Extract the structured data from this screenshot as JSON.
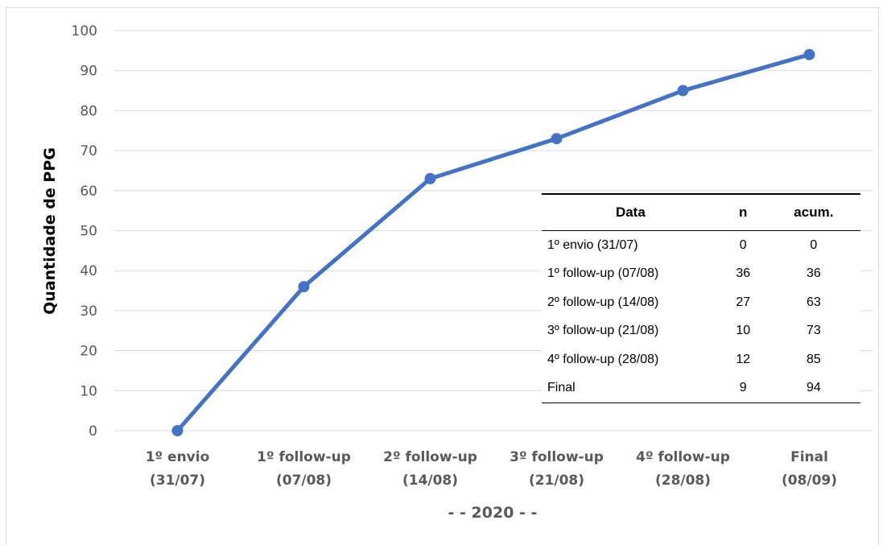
{
  "chart_data": {
    "type": "line",
    "categories": [
      [
        "1º envio",
        "(31/07)"
      ],
      [
        "1º follow-up",
        "(07/08)"
      ],
      [
        "2º follow-up",
        "(14/08)"
      ],
      [
        "3º follow-up",
        "(21/08)"
      ],
      [
        "4º follow-up",
        "(28/08)"
      ],
      [
        "Final",
        "(08/09)"
      ]
    ],
    "series": [
      {
        "values": [
          0,
          36,
          63,
          73,
          85,
          94
        ]
      }
    ],
    "ylabel": "Quantidade de PPG",
    "xlabel": "- - 2020 - -",
    "ylim": [
      0,
      100
    ],
    "yticks": [
      0,
      10,
      20,
      30,
      40,
      50,
      60,
      70,
      80,
      90,
      100
    ],
    "grid": true,
    "line_color": "#4472c4",
    "gridline_color": "#d9d9d9",
    "table": {
      "headers": [
        "Data",
        "n",
        "acum."
      ],
      "rows": [
        [
          "1º envio (31/07)",
          "0",
          "0"
        ],
        [
          "1º follow-up (07/08)",
          "36",
          "36"
        ],
        [
          "2º follow-up (14/08)",
          "27",
          "63"
        ],
        [
          "3º follow-up (21/08)",
          "10",
          "73"
        ],
        [
          "4º follow-up (28/08)",
          "12",
          "85"
        ],
        [
          "Final",
          "9",
          "94"
        ]
      ]
    }
  }
}
